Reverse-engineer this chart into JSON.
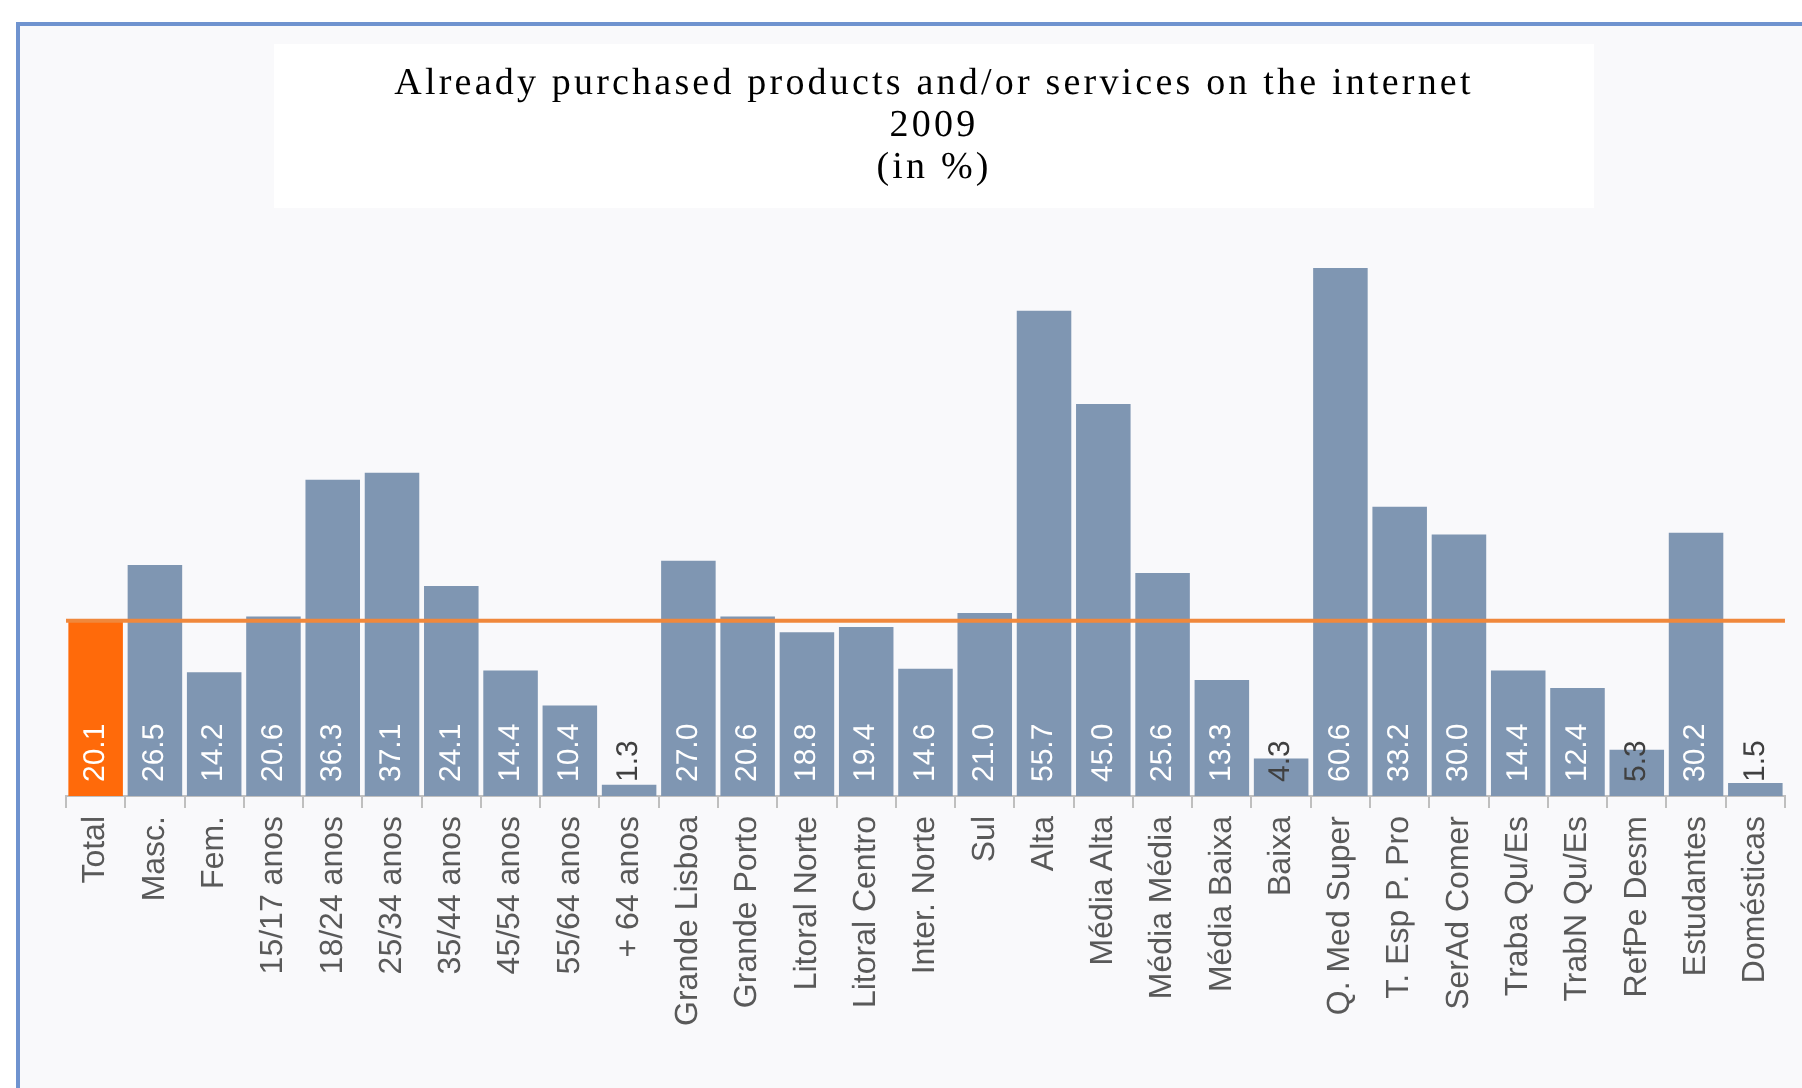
{
  "chart_data": {
    "type": "bar",
    "title": "Already purchased products and/or services on the internet\n2009\n(in %)",
    "categories": [
      "Total",
      "Masc.",
      "Fem.",
      "15/17 anos",
      "18/24 anos",
      "25/34 anos",
      "35/44 anos",
      "45/54 anos",
      "55/64 anos",
      "+ 64 anos",
      "Grande Lisboa",
      "Grande Porto",
      "Litoral Norte",
      "Litoral Centro",
      "Inter. Norte",
      "Sul",
      "Alta",
      "Média Alta",
      "Média Média",
      "Média Baixa",
      "Baixa",
      "Q. Med Super",
      "T. Esp P. Pro",
      "SerAd Comer",
      "Traba Qu/Es",
      "TrabN Qu/Es",
      "RefPe Desm",
      "Estudantes",
      "Domésticas"
    ],
    "values": [
      20.1,
      26.5,
      14.2,
      20.6,
      36.3,
      37.1,
      24.1,
      14.4,
      10.4,
      1.3,
      27.0,
      20.6,
      18.8,
      19.4,
      14.6,
      21.0,
      55.7,
      45.0,
      25.6,
      13.3,
      4.3,
      60.6,
      33.2,
      30.0,
      14.4,
      12.4,
      5.3,
      30.2,
      1.5
    ],
    "value_labels": [
      "20.1",
      "26.5",
      "14.2",
      "20.6",
      "36.3",
      "37.1",
      "24.1",
      "14.4",
      "10.4",
      "1.3",
      "27.0",
      "20.6",
      "18.8",
      "19.4",
      "14.6",
      "21.0",
      "55.7",
      "45.0",
      "25.6",
      "13.3",
      "4.3",
      "60.6",
      "33.2",
      "30.0",
      "14.4",
      "12.4",
      "5.3",
      "30.2",
      "1.5"
    ],
    "colors": [
      "#ff6a0a",
      "#7f96b2",
      "#7f96b2",
      "#7f96b2",
      "#7f96b2",
      "#7f96b2",
      "#7f96b2",
      "#7f96b2",
      "#7f96b2",
      "#7f96b2",
      "#7f96b2",
      "#7f96b2",
      "#7f96b2",
      "#7f96b2",
      "#7f96b2",
      "#7f96b2",
      "#7f96b2",
      "#7f96b2",
      "#7f96b2",
      "#7f96b2",
      "#7f96b2",
      "#7f96b2",
      "#7f96b2",
      "#7f96b2",
      "#7f96b2",
      "#7f96b2",
      "#7f96b2",
      "#7f96b2",
      "#7f96b2"
    ],
    "tick_labels": "x",
    "ref_lines": [
      {
        "axis": "y",
        "value": 20.1,
        "color": "#f0883c"
      }
    ]
  }
}
